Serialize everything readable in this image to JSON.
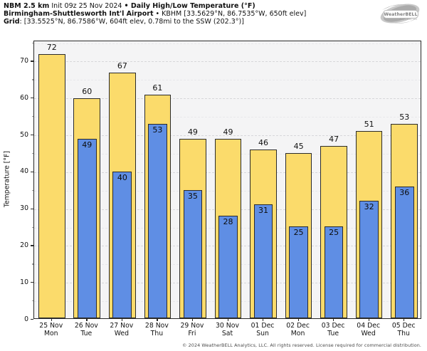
{
  "header": {
    "line1": {
      "model": "NBM 2.5 km",
      "init": " Init 09z 25 Nov 2024 ",
      "bullet": "• ",
      "product": "Daily High/Low Temperature (°F)"
    },
    "line2": {
      "station": "Birmingham-Shuttlesworth Int'l Airport",
      "details": " • KBHM [33.5629°N, 86.7535°W, 650ft elev]"
    },
    "line3": {
      "label": "Grid",
      "details": ": [33.5525°N, 86.7586°W, 604ft elev, 0.78mi to the SSW (202.3°)]"
    }
  },
  "logo": {
    "name": "WeatherBELL",
    "subtext": "Analytics LLC"
  },
  "chart_data": {
    "type": "bar",
    "title": "Daily High/Low Temperature (°F)",
    "xlabel": "",
    "ylabel": "Temperature [°F]",
    "ylim": [
      0,
      75.5
    ],
    "yticks": [
      0,
      10,
      20,
      30,
      40,
      50,
      60,
      70
    ],
    "minor_ticks_every": 5,
    "grid": "dashed horizontal, major every 10, minor every 5",
    "legend": "none (yellow = daily high, blue = daily low, value labels on bars)",
    "categories": [
      {
        "date": "25 Nov",
        "day": "Mon"
      },
      {
        "date": "26 Nov",
        "day": "Tue"
      },
      {
        "date": "27 Nov",
        "day": "Wed"
      },
      {
        "date": "28 Nov",
        "day": "Thu"
      },
      {
        "date": "29 Nov",
        "day": "Fri"
      },
      {
        "date": "30 Nov",
        "day": "Sat"
      },
      {
        "date": "01 Dec",
        "day": "Sun"
      },
      {
        "date": "02 Dec",
        "day": "Mon"
      },
      {
        "date": "03 Dec",
        "day": "Tue"
      },
      {
        "date": "04 Dec",
        "day": "Wed"
      },
      {
        "date": "05 Dec",
        "day": "Thu"
      }
    ],
    "series": [
      {
        "name": "Daily High",
        "color": "#fbdb6b",
        "values": [
          72,
          60,
          67,
          61,
          49,
          49,
          46,
          45,
          47,
          51,
          53
        ]
      },
      {
        "name": "Daily Low",
        "color": "#5f8ee4",
        "values": [
          null,
          49,
          40,
          53,
          35,
          28,
          31,
          25,
          25,
          32,
          36
        ]
      }
    ]
  },
  "colors": {
    "high_bar": "#fbdb6b",
    "low_bar": "#5f8ee4",
    "bar_border": "#2b2b2b",
    "plot_background": "#f4f4f5",
    "major_grid": "#d7d7da",
    "minor_grid": "#e8e8eb"
  },
  "footer": {
    "copyright": "© 2024 WeatherBELL Analytics, LLC. All rights reserved. License required for commercial distribution."
  }
}
